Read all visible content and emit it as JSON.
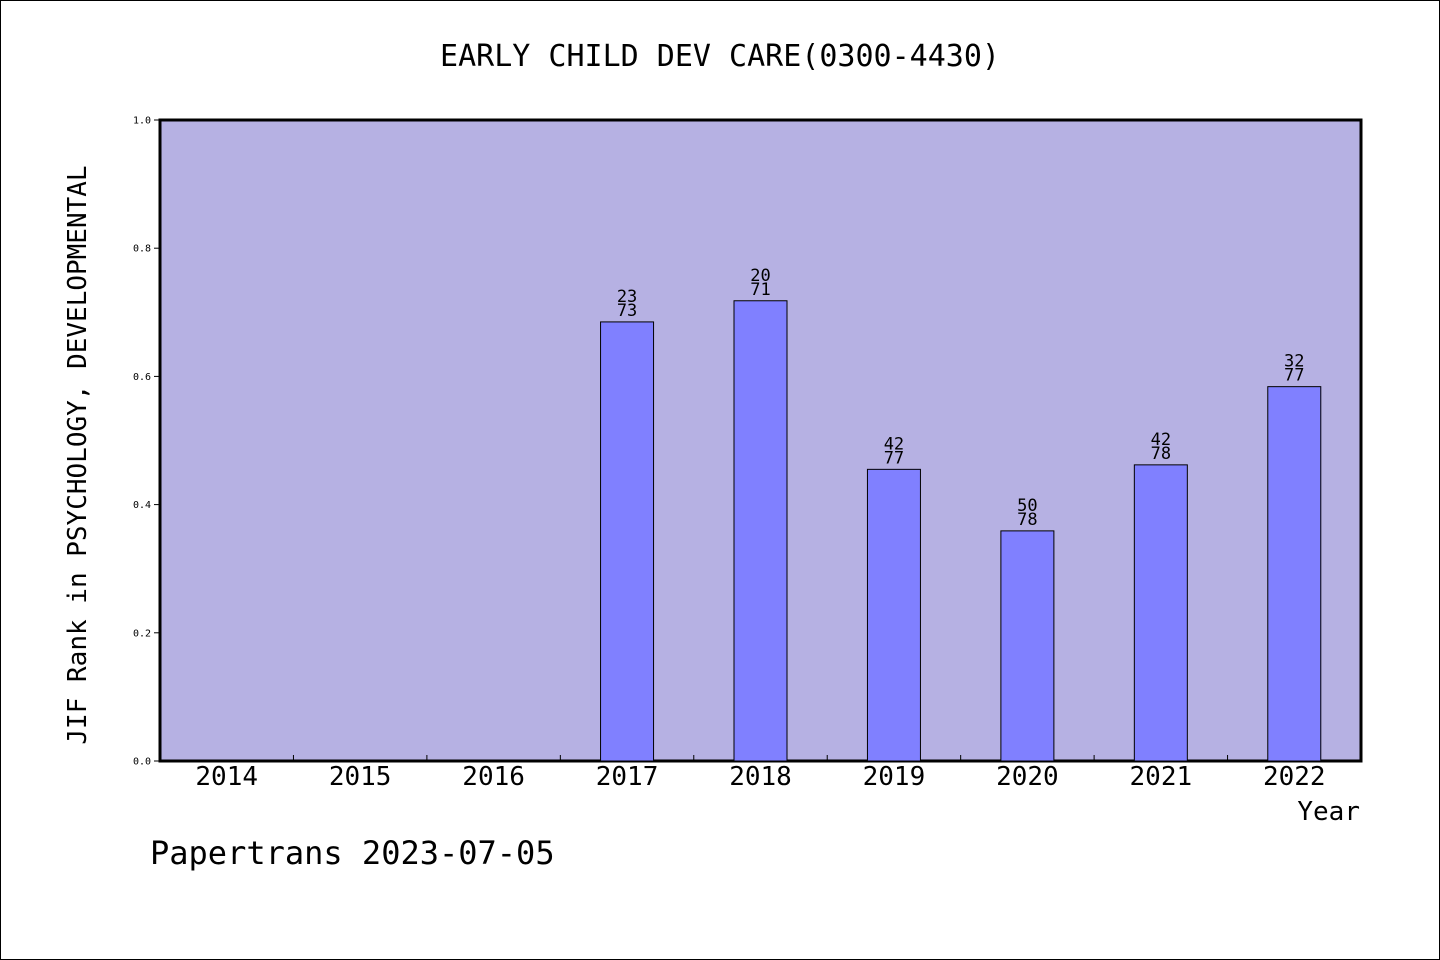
{
  "chart_data": {
    "type": "bar",
    "title": "EARLY CHILD DEV CARE(0300-4430)",
    "xlabel": "Year",
    "ylabel": "JIF Rank in PSYCHOLOGY, DEVELOPMENTAL",
    "ylim": [
      0,
      1.0
    ],
    "yticks": [
      "0.0",
      "0.2",
      "0.4",
      "0.6",
      "0.8",
      "1.0"
    ],
    "categories": [
      "2014",
      "2015",
      "2016",
      "2017",
      "2018",
      "2019",
      "2020",
      "2021",
      "2022"
    ],
    "values": [
      null,
      null,
      null,
      0.685,
      0.718,
      0.455,
      0.359,
      0.462,
      0.584
    ],
    "rank_labels": [
      null,
      null,
      null,
      {
        "rank": "23",
        "total": "73"
      },
      {
        "rank": "20",
        "total": "71"
      },
      {
        "rank": "42",
        "total": "77"
      },
      {
        "rank": "50",
        "total": "78"
      },
      {
        "rank": "42",
        "total": "78"
      },
      {
        "rank": "32",
        "total": "77"
      }
    ],
    "grid": false,
    "colors": {
      "plot_background": "#b6b1e3",
      "bar_fill": "#8080ff",
      "bar_stroke": "#000000"
    }
  },
  "footer": {
    "watermark": "Papertrans 2023-07-05"
  }
}
